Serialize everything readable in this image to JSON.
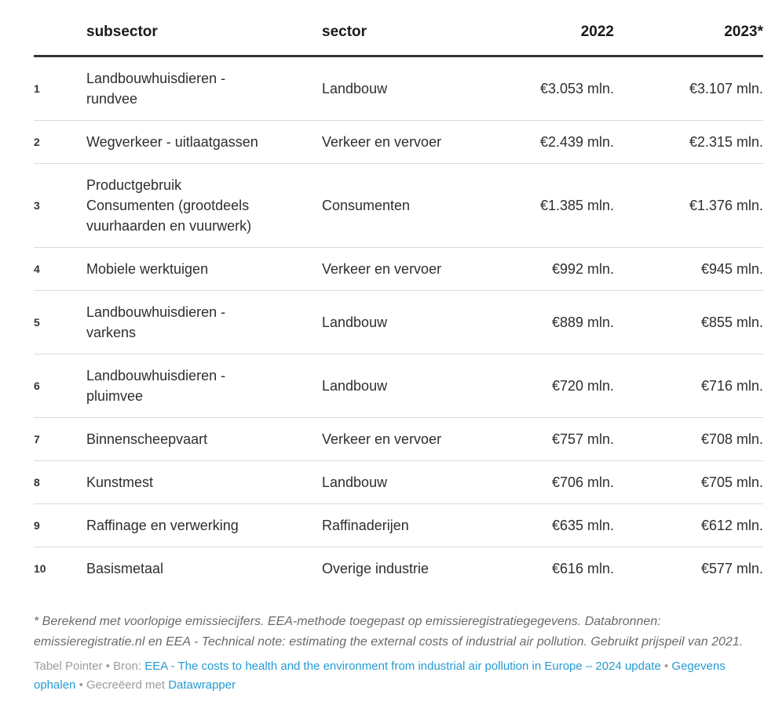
{
  "chart_data": {
    "type": "table",
    "columns": [
      {
        "key": "rank",
        "label": "",
        "align": "left"
      },
      {
        "key": "subsector",
        "label": "subsector",
        "align": "left"
      },
      {
        "key": "sector",
        "label": "sector",
        "align": "left"
      },
      {
        "key": "y2022",
        "label": "2022",
        "align": "right"
      },
      {
        "key": "y2023",
        "label": "2023*",
        "align": "right"
      }
    ],
    "rows": [
      {
        "rank": "1",
        "subsector": "Landbouwhuisdieren -\nrundvee",
        "sector": "Landbouw",
        "y2022": "€3.053 mln.",
        "y2023": "€3.107 mln."
      },
      {
        "rank": "2",
        "subsector": "Wegverkeer - uitlaatgassen",
        "sector": "Verkeer en vervoer",
        "y2022": "€2.439 mln.",
        "y2023": "€2.315 mln."
      },
      {
        "rank": "3",
        "subsector": "Productgebruik\nConsumenten (grootdeels\nvuurhaarden en vuurwerk)",
        "sector": "Consumenten",
        "y2022": "€1.385 mln.",
        "y2023": "€1.376 mln."
      },
      {
        "rank": "4",
        "subsector": "Mobiele werktuigen",
        "sector": "Verkeer en vervoer",
        "y2022": "€992 mln.",
        "y2023": "€945 mln."
      },
      {
        "rank": "5",
        "subsector": "Landbouwhuisdieren -\nvarkens",
        "sector": "Landbouw",
        "y2022": "€889 mln.",
        "y2023": "€855 mln."
      },
      {
        "rank": "6",
        "subsector": "Landbouwhuisdieren -\npluimvee",
        "sector": "Landbouw",
        "y2022": "€720 mln.",
        "y2023": "€716 mln."
      },
      {
        "rank": "7",
        "subsector": "Binnenscheepvaart",
        "sector": "Verkeer en vervoer",
        "y2022": "€757 mln.",
        "y2023": "€708 mln."
      },
      {
        "rank": "8",
        "subsector": "Kunstmest",
        "sector": "Landbouw",
        "y2022": "€706 mln.",
        "y2023": "€705 mln."
      },
      {
        "rank": "9",
        "subsector": "Raffinage en verwerking",
        "sector": "Raffinaderijen",
        "y2022": "€635 mln.",
        "y2023": "€612 mln."
      },
      {
        "rank": "10",
        "subsector": "Basismetaal",
        "sector": "Overige industrie",
        "y2022": "€616 mln.",
        "y2023": "€577 mln."
      }
    ],
    "title": "",
    "layout_hints": {
      "grid": "horizontal row separators",
      "header_rule": "thick dark",
      "value_columns_align": "right"
    }
  },
  "footnote": "* Berekend met voorlopige emissiecijfers. EEA-methode toegepast op emissieregistratiegegevens. Databronnen: emissieregistratie.nl en EEA - Technical note: estimating the external costs of industrial air pollution. Gebruikt prijspeil van 2021.",
  "footer": {
    "byline": "Tabel Pointer",
    "sep": "•",
    "source_label": "Bron:",
    "source_link_label": "EEA - The costs to health and the environment from industrial air pollution in Europe – 2024 update",
    "get_data_label": "Gegevens ophalen",
    "created_with_label": "Gecreëerd met",
    "creator_label": "Datawrapper"
  },
  "colors": {
    "link": "#259bd3",
    "header_text": "#1a1a1a",
    "body_text": "#2e2e2e",
    "row_separator": "#dadada",
    "header_rule": "#333333",
    "footnote_text": "#6a6a6a",
    "attribution_text": "#9c9c9c"
  }
}
